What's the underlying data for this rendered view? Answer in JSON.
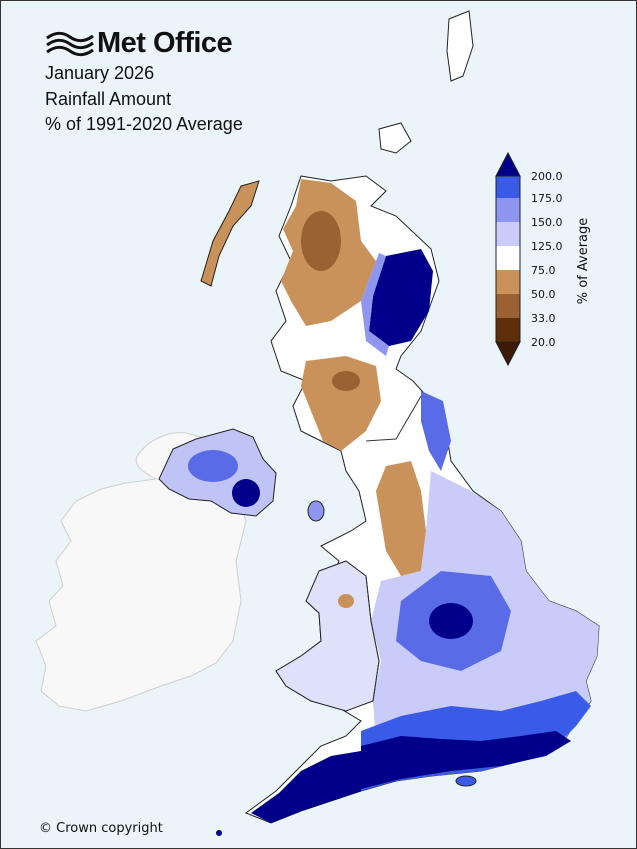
{
  "logo": {
    "text": "Met Office",
    "icon": "met-office-waves-icon"
  },
  "title": {
    "line1": "January 2026",
    "line2": "Rainfall Amount",
    "line3": "% of 1991-2020 Average"
  },
  "colorbar": {
    "label": "% of Average",
    "ticks": [
      "200.0",
      "175.0",
      "150.0",
      "125.0",
      "75.0",
      "50.0",
      "33.0",
      "20.0"
    ],
    "colors": [
      "#00008b",
      "#3a5ae8",
      "#8f96f0",
      "#c9cbf8",
      "#ffffff",
      "#c9925a",
      "#9a6233",
      "#5f2f0c",
      "#3d1a05"
    ]
  },
  "colors": {
    "background": "#eaf4f9",
    "ireland": "#f7f7f7",
    "dry": "#c9925a",
    "wet": "#3a5ae8"
  },
  "footer": {
    "copyright": "© Crown copyright"
  }
}
